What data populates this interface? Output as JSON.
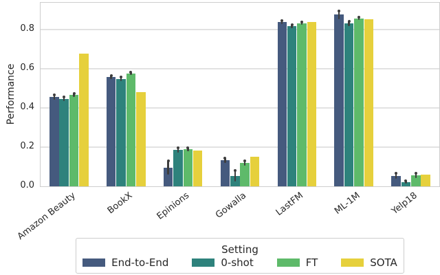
{
  "figure": {
    "ylabel": "Performance",
    "ytick_labels": [
      "0.0",
      "0.2",
      "0.4",
      "0.6",
      "0.8"
    ]
  },
  "chart_data": {
    "type": "bar",
    "title": "",
    "xlabel": "",
    "ylabel": "Performance",
    "ylim": [
      0,
      0.94
    ],
    "yticks": [
      0.0,
      0.2,
      0.4,
      0.6,
      0.8
    ],
    "grid": true,
    "legend_position": "bottom",
    "legend_title": "Setting",
    "categories": [
      "Amazon Beauty",
      "BookX",
      "Epinions",
      "Gowalla",
      "LastFM",
      "ML-1M",
      "Yelp18"
    ],
    "series": [
      {
        "name": "End-to-End",
        "color": "#455a7e",
        "values": [
          0.455,
          0.557,
          0.095,
          0.132,
          0.838,
          0.876,
          0.052
        ],
        "errors": [
          0.012,
          0.01,
          0.036,
          0.013,
          0.01,
          0.022,
          0.015
        ]
      },
      {
        "name": "0-shot",
        "color": "#2e827c",
        "values": [
          0.447,
          0.549,
          0.185,
          0.053,
          0.818,
          0.832,
          0.022
        ],
        "errors": [
          0.012,
          0.012,
          0.013,
          0.03,
          0.01,
          0.013,
          0.008
        ]
      },
      {
        "name": "FT",
        "color": "#5eba6a",
        "values": [
          0.467,
          0.575,
          0.19,
          0.12,
          0.833,
          0.857,
          0.055
        ],
        "errors": [
          0.01,
          0.008,
          0.01,
          0.013,
          0.007,
          0.009,
          0.012
        ]
      },
      {
        "name": "SOTA",
        "color": "#e6d03c",
        "values": [
          0.678,
          0.48,
          0.183,
          0.152,
          0.838,
          0.852,
          0.058
        ],
        "errors": null
      }
    ]
  }
}
